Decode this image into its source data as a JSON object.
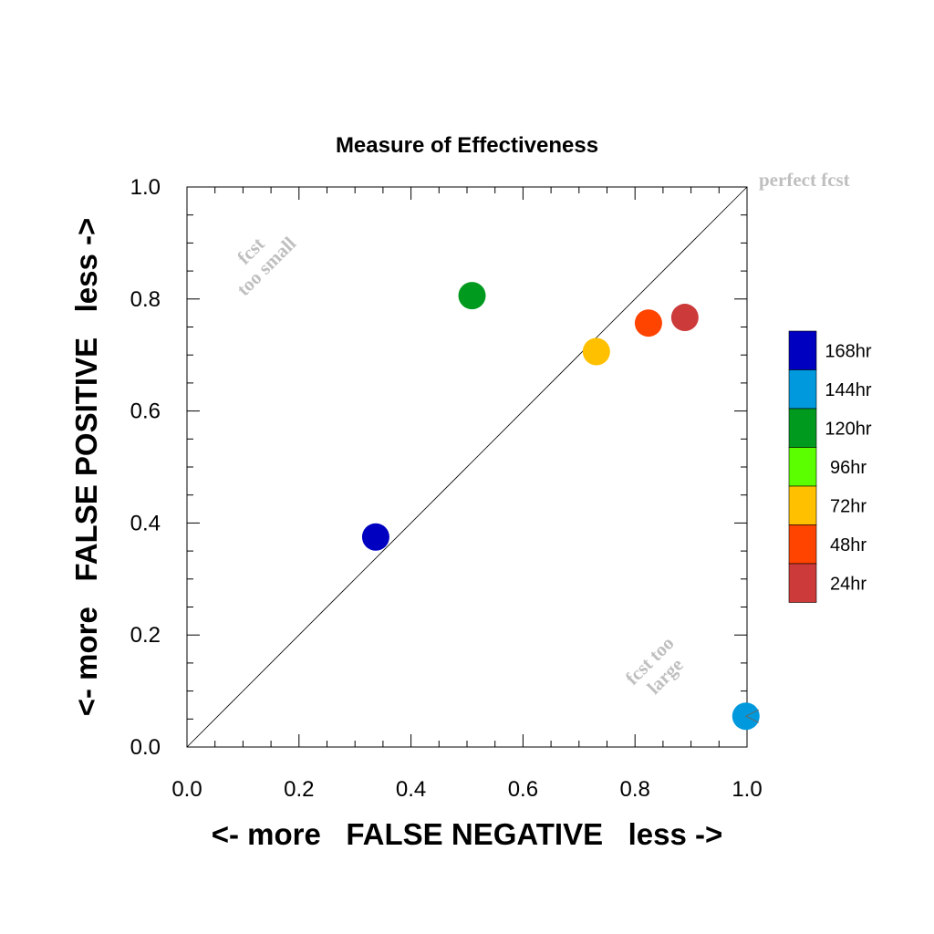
{
  "chart_data": {
    "type": "scatter",
    "title": "Measure of Effectiveness",
    "xlabel": "<- more   FALSE NEGATIVE   less ->",
    "ylabel": "<- more   FALSE POSITIVE   less ->",
    "xlim": [
      0,
      1
    ],
    "ylim": [
      0,
      1
    ],
    "x_ticks": [
      0,
      0.2,
      0.4,
      0.6,
      0.8,
      1
    ],
    "y_ticks": [
      0,
      0.2,
      0.4,
      0.6,
      0.8,
      1
    ],
    "x_tick_labels": [
      "0.0",
      "0.2",
      "0.4",
      "0.6",
      "0.8",
      "1.0"
    ],
    "y_tick_labels": [
      "0.0",
      "0.2",
      "0.4",
      "0.6",
      "0.8",
      "1.0"
    ],
    "grid": false,
    "diagonal": true,
    "legend_placement": "right",
    "annotations": {
      "perfect": "perfect fcst",
      "too_small_line1": "fcst",
      "too_small_line2": "too small",
      "too_large_line1": "fcst too",
      "too_large_line2": "large"
    },
    "series": [
      {
        "name": "168hr",
        "color": "#0000c0",
        "x": 0.337,
        "y": 0.375
      },
      {
        "name": "144hr",
        "color": "#0099dd",
        "x": 0.998,
        "y": 0.055
      },
      {
        "name": "120hr",
        "color": "#009a1f",
        "x": 0.509,
        "y": 0.806
      },
      {
        "name": "96hr",
        "color": "#5cff00",
        "x": null,
        "y": null
      },
      {
        "name": "72hr",
        "color": "#ffc000",
        "x": 0.731,
        "y": 0.706
      },
      {
        "name": "48hr",
        "color": "#ff4400",
        "x": 0.824,
        "y": 0.757
      },
      {
        "name": "24hr",
        "color": "#cc3a3a",
        "x": 0.889,
        "y": 0.767
      }
    ]
  }
}
